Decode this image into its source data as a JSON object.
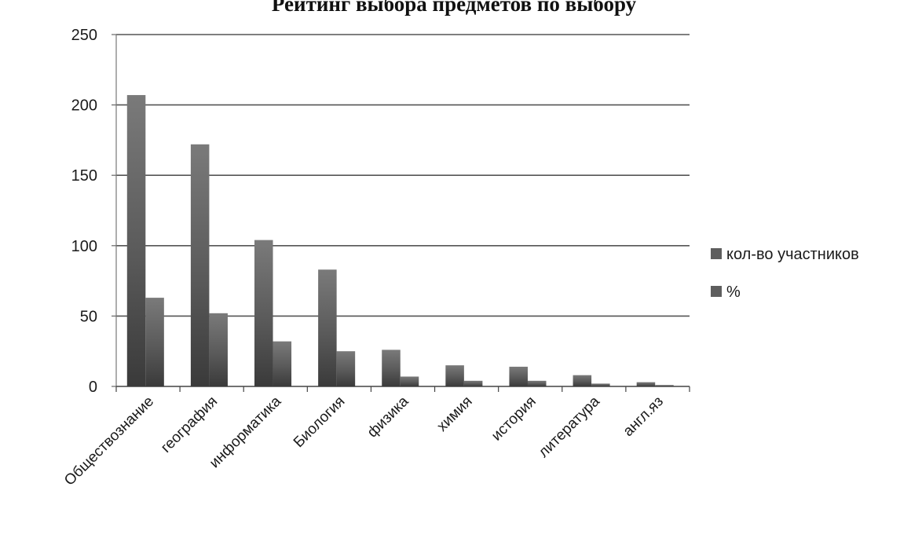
{
  "chart_data": {
    "type": "bar",
    "title": "Рейтинг выбора предметов по выбору",
    "xlabel": "",
    "ylabel": "",
    "categories": [
      "Обществознание",
      "география",
      "информатика",
      "Биология",
      "физика",
      "химия",
      "история",
      "литература",
      "англ.яз"
    ],
    "series": [
      {
        "name": "кол-во участников",
        "color": "#5e5e5e",
        "values": [
          207,
          172,
          104,
          83,
          26,
          15,
          14,
          8,
          3
        ]
      },
      {
        "name": "%",
        "color": "#5e5e5e",
        "values": [
          63,
          52,
          32,
          25,
          7,
          4,
          4,
          2,
          1
        ]
      }
    ],
    "ylim": [
      0,
      250
    ],
    "yticks": [
      "0",
      "50",
      "100",
      "150",
      "200",
      "250"
    ],
    "grid": true,
    "legend_position": "right"
  }
}
